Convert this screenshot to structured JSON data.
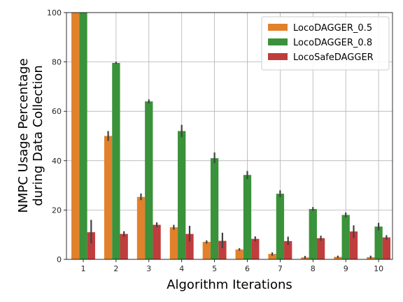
{
  "chart_data": {
    "type": "bar",
    "xlabel": "Algorithm Iterations",
    "ylabel_lines": [
      "NMPC Usage Percentage",
      "during Data Collection"
    ],
    "categories": [
      "1",
      "2",
      "3",
      "4",
      "5",
      "6",
      "7",
      "8",
      "9",
      "10"
    ],
    "ylim": [
      0,
      100
    ],
    "yticks": [
      "0",
      "20",
      "40",
      "60",
      "80",
      "100"
    ],
    "grid": true,
    "legend_position": "top-right",
    "series": [
      {
        "name": "LocoDAGGER_0.5",
        "color": "#e1812c",
        "values": [
          100,
          50,
          25.3,
          13,
          7.1,
          4,
          2.2,
          0.8,
          1,
          0.9
        ],
        "err_low": [
          100,
          48,
          24,
          12,
          6.4,
          3.5,
          1.5,
          0.3,
          0.5,
          0.3
        ],
        "err_high": [
          100,
          52,
          26.7,
          14,
          7.7,
          4.5,
          2.8,
          1.4,
          1.5,
          1.5
        ]
      },
      {
        "name": "LocoDAGGER_0.8",
        "color": "#3a923a",
        "values": [
          100,
          79.6,
          64,
          52,
          41,
          34.2,
          26.6,
          20.4,
          18,
          13.3
        ],
        "err_low": [
          100,
          79.2,
          63.2,
          49.5,
          39,
          32.5,
          25.2,
          19.6,
          17,
          11.7
        ],
        "err_high": [
          100,
          80.1,
          64.8,
          54.5,
          43.3,
          35.8,
          28,
          21.2,
          19,
          14.8
        ]
      },
      {
        "name": "LocoSafeDAGGER",
        "color": "#c03d3e",
        "values": [
          11,
          10.3,
          14,
          10.3,
          7.5,
          8.3,
          7.4,
          8.6,
          11.3,
          8.9
        ],
        "err_low": [
          6.5,
          9.2,
          13,
          7.2,
          4.5,
          7.2,
          5.8,
          7.5,
          8.7,
          8
        ],
        "err_high": [
          16,
          11.4,
          15,
          13.6,
          10.8,
          9.3,
          9.2,
          9.6,
          13.8,
          9.8
        ]
      }
    ]
  }
}
